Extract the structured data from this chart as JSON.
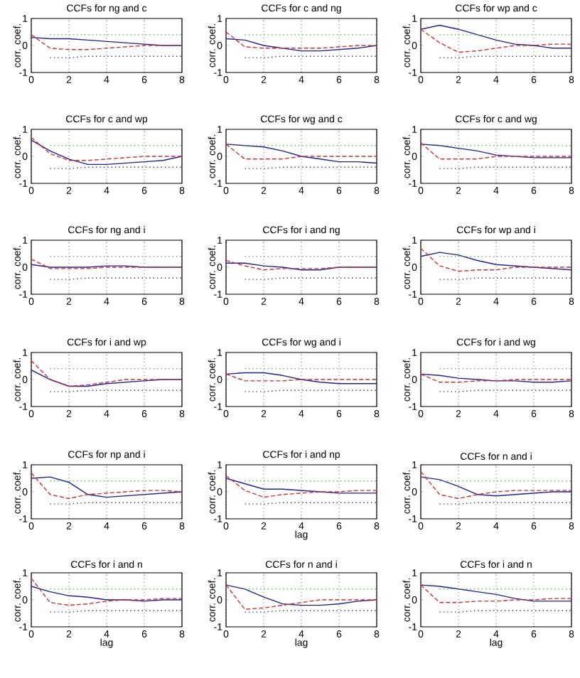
{
  "chart_data": [
    {
      "type": "line",
      "title": "CCFs for ng and c",
      "ylabel": "corr. coef.",
      "xlim": [
        0,
        8
      ],
      "ylim": [
        -1,
        1
      ],
      "xticks": [
        0,
        2,
        4,
        6,
        8
      ],
      "yticks": [
        -1,
        0,
        1
      ],
      "grid": "x",
      "x": [
        0,
        1,
        2,
        3,
        4,
        5,
        6,
        7,
        8
      ],
      "series": [
        {
          "color": "#22228c",
          "line_style": "solid",
          "values": [
            0.3,
            0.25,
            0.25,
            0.2,
            0.15,
            0.1,
            0.05,
            0,
            0
          ]
        },
        {
          "color": "#cc3333",
          "line_style": "dashed",
          "values": [
            0.4,
            -0.1,
            -0.15,
            -0.15,
            -0.1,
            -0.05,
            0,
            0,
            0
          ]
        },
        {
          "color": "#55bb55",
          "line_style": "dotted",
          "x": [
            1,
            2,
            3,
            4,
            5,
            6,
            7,
            8
          ],
          "values": [
            0.4,
            0.4,
            0.4,
            0.4,
            0.4,
            0.4,
            0.4,
            0.4
          ]
        },
        {
          "color": "#333366",
          "line_style": "dotted",
          "x": [
            1,
            2,
            3,
            4,
            5,
            6,
            7,
            8
          ],
          "values": [
            -0.45,
            -0.45,
            -0.4,
            -0.4,
            -0.4,
            -0.4,
            -0.4,
            -0.4
          ]
        }
      ]
    },
    {
      "type": "line",
      "title": "CCFs for c and ng",
      "ylabel": "corr. coef.",
      "xlim": [
        0,
        8
      ],
      "ylim": [
        -1,
        1
      ],
      "xticks": [
        0,
        2,
        4,
        6,
        8
      ],
      "yticks": [
        -1,
        0,
        1
      ],
      "grid": "x",
      "x": [
        0,
        1,
        2,
        3,
        4,
        5,
        6,
        7,
        8
      ],
      "series": [
        {
          "color": "#22228c",
          "line_style": "solid",
          "values": [
            0.25,
            0.2,
            0,
            -0.1,
            -0.2,
            -0.2,
            -0.15,
            -0.1,
            0
          ]
        },
        {
          "color": "#cc3333",
          "line_style": "dashed",
          "values": [
            0.5,
            -0.05,
            -0.1,
            -0.1,
            -0.1,
            -0.1,
            -0.05,
            0,
            0
          ]
        },
        {
          "color": "#55bb55",
          "line_style": "dotted",
          "x": [
            1,
            2,
            3,
            4,
            5,
            6,
            7,
            8
          ],
          "values": [
            0.4,
            0.4,
            0.4,
            0.4,
            0.4,
            0.4,
            0.4,
            0.4
          ]
        },
        {
          "color": "#333366",
          "line_style": "dotted",
          "x": [
            1,
            2,
            3,
            4,
            5,
            6,
            7,
            8
          ],
          "values": [
            -0.45,
            -0.45,
            -0.4,
            -0.4,
            -0.4,
            -0.4,
            -0.4,
            -0.4
          ]
        }
      ]
    },
    {
      "type": "line",
      "title": "CCFs for wp and c",
      "ylabel": "corr. coef.",
      "xlim": [
        0,
        8
      ],
      "ylim": [
        -1,
        1
      ],
      "xticks": [
        0,
        2,
        4,
        6,
        8
      ],
      "yticks": [
        -1,
        0,
        1
      ],
      "grid": "x",
      "x": [
        0,
        1,
        2,
        3,
        4,
        5,
        6,
        7,
        8
      ],
      "series": [
        {
          "color": "#22228c",
          "line_style": "solid",
          "values": [
            0.6,
            0.75,
            0.6,
            0.4,
            0.2,
            0.05,
            0,
            -0.1,
            -0.1
          ]
        },
        {
          "color": "#cc3333",
          "line_style": "dashed",
          "values": [
            0.6,
            0.1,
            -0.25,
            -0.2,
            -0.1,
            0,
            0,
            0.05,
            0.05
          ]
        },
        {
          "color": "#55bb55",
          "line_style": "dotted",
          "x": [
            1,
            2,
            3,
            4,
            5,
            6,
            7,
            8
          ],
          "values": [
            0.4,
            0.4,
            0.4,
            0.4,
            0.4,
            0.4,
            0.4,
            0.4
          ]
        },
        {
          "color": "#333366",
          "line_style": "dotted",
          "x": [
            1,
            2,
            3,
            4,
            5,
            6,
            7,
            8
          ],
          "values": [
            -0.45,
            -0.45,
            -0.4,
            -0.4,
            -0.4,
            -0.4,
            -0.4,
            -0.4
          ]
        }
      ]
    },
    {
      "type": "line",
      "title": "CCFs for c and wp",
      "ylabel": "corr. coef.",
      "xlim": [
        0,
        8
      ],
      "ylim": [
        -1,
        1
      ],
      "xticks": [
        0,
        2,
        4,
        6,
        8
      ],
      "yticks": [
        -1,
        0,
        1
      ],
      "grid": "x",
      "x": [
        0,
        1,
        2,
        3,
        4,
        5,
        6,
        7,
        8
      ],
      "series": [
        {
          "color": "#22228c",
          "line_style": "solid",
          "values": [
            0.6,
            0.2,
            -0.1,
            -0.3,
            -0.3,
            -0.25,
            -0.2,
            -0.15,
            0
          ]
        },
        {
          "color": "#cc3333",
          "line_style": "dashed",
          "values": [
            0.7,
            0.1,
            -0.15,
            -0.15,
            -0.1,
            -0.05,
            0,
            0,
            0
          ]
        },
        {
          "color": "#55bb55",
          "line_style": "dotted",
          "x": [
            1,
            2,
            3,
            4,
            5,
            6,
            7,
            8
          ],
          "values": [
            0.4,
            0.4,
            0.4,
            0.4,
            0.4,
            0.4,
            0.4,
            0.4
          ]
        },
        {
          "color": "#333366",
          "line_style": "dotted",
          "x": [
            1,
            2,
            3,
            4,
            5,
            6,
            7,
            8
          ],
          "values": [
            -0.45,
            -0.45,
            -0.4,
            -0.4,
            -0.4,
            -0.4,
            -0.4,
            -0.4
          ]
        }
      ]
    },
    {
      "type": "line",
      "title": "CCFs for wg and c",
      "ylabel": "corr. coef.",
      "xlim": [
        0,
        8
      ],
      "ylim": [
        -1,
        1
      ],
      "xticks": [
        0,
        2,
        4,
        6,
        8
      ],
      "yticks": [
        -1,
        0,
        1
      ],
      "grid": "x",
      "x": [
        0,
        1,
        2,
        3,
        4,
        5,
        6,
        7,
        8
      ],
      "series": [
        {
          "color": "#22228c",
          "line_style": "solid",
          "values": [
            0.45,
            0.4,
            0.35,
            0.2,
            0,
            -0.1,
            -0.2,
            -0.2,
            -0.25
          ]
        },
        {
          "color": "#cc3333",
          "line_style": "dashed",
          "values": [
            0.45,
            -0.1,
            -0.1,
            -0.1,
            0,
            0,
            0,
            0,
            0
          ]
        },
        {
          "color": "#55bb55",
          "line_style": "dotted",
          "x": [
            1,
            2,
            3,
            4,
            5,
            6,
            7,
            8
          ],
          "values": [
            0.4,
            0.4,
            0.4,
            0.4,
            0.4,
            0.4,
            0.4,
            0.4
          ]
        },
        {
          "color": "#333366",
          "line_style": "dotted",
          "x": [
            1,
            2,
            3,
            4,
            5,
            6,
            7,
            8
          ],
          "values": [
            -0.45,
            -0.45,
            -0.4,
            -0.4,
            -0.4,
            -0.4,
            -0.4,
            -0.4
          ]
        }
      ]
    },
    {
      "type": "line",
      "title": "CCFs for c and wg",
      "ylabel": "corr. coef.",
      "xlim": [
        0,
        8
      ],
      "ylim": [
        -1,
        1
      ],
      "xticks": [
        0,
        2,
        4,
        6,
        8
      ],
      "yticks": [
        -1,
        0,
        1
      ],
      "grid": "x",
      "x": [
        0,
        1,
        2,
        3,
        4,
        5,
        6,
        7,
        8
      ],
      "series": [
        {
          "color": "#22228c",
          "line_style": "solid",
          "values": [
            0.45,
            0.4,
            0.3,
            0.2,
            0.05,
            0,
            -0.05,
            -0.05,
            -0.05
          ]
        },
        {
          "color": "#cc3333",
          "line_style": "dashed",
          "values": [
            0.5,
            -0.1,
            -0.1,
            -0.1,
            0,
            0,
            0,
            0,
            0
          ]
        },
        {
          "color": "#55bb55",
          "line_style": "dotted",
          "x": [
            1,
            2,
            3,
            4,
            5,
            6,
            7,
            8
          ],
          "values": [
            0.4,
            0.4,
            0.4,
            0.4,
            0.4,
            0.4,
            0.4,
            0.4
          ]
        },
        {
          "color": "#333366",
          "line_style": "dotted",
          "x": [
            1,
            2,
            3,
            4,
            5,
            6,
            7,
            8
          ],
          "values": [
            -0.45,
            -0.45,
            -0.4,
            -0.4,
            -0.4,
            -0.4,
            -0.4,
            -0.4
          ]
        }
      ]
    },
    {
      "type": "line",
      "title": "CCFs for ng and i",
      "ylabel": "corr. coef.",
      "xlim": [
        0,
        8
      ],
      "ylim": [
        -1,
        1
      ],
      "xticks": [
        0,
        2,
        4,
        6,
        8
      ],
      "yticks": [
        -1,
        0,
        1
      ],
      "grid": "x",
      "x": [
        0,
        1,
        2,
        3,
        4,
        5,
        6,
        7,
        8
      ],
      "series": [
        {
          "color": "#22228c",
          "line_style": "solid",
          "values": [
            0.1,
            0,
            0,
            0,
            0.05,
            0.05,
            0,
            0,
            0
          ]
        },
        {
          "color": "#cc3333",
          "line_style": "dashed",
          "values": [
            0.3,
            -0.05,
            -0.05,
            -0.05,
            0,
            0,
            0,
            0,
            0
          ]
        },
        {
          "color": "#55bb55",
          "line_style": "dotted",
          "x": [
            1,
            2,
            3,
            4,
            5,
            6,
            7,
            8
          ],
          "values": [
            0.4,
            0.4,
            0.4,
            0.4,
            0.4,
            0.4,
            0.4,
            0.4
          ]
        },
        {
          "color": "#333366",
          "line_style": "dotted",
          "x": [
            1,
            2,
            3,
            4,
            5,
            6,
            7,
            8
          ],
          "values": [
            -0.45,
            -0.45,
            -0.4,
            -0.4,
            -0.4,
            -0.4,
            -0.4,
            -0.4
          ]
        }
      ]
    },
    {
      "type": "line",
      "title": "CCFs for i and ng",
      "ylabel": "corr. coef.",
      "xlim": [
        0,
        8
      ],
      "ylim": [
        -1,
        1
      ],
      "xticks": [
        0,
        2,
        4,
        6,
        8
      ],
      "yticks": [
        -1,
        0,
        1
      ],
      "grid": "x",
      "x": [
        0,
        1,
        2,
        3,
        4,
        5,
        6,
        7,
        8
      ],
      "series": [
        {
          "color": "#22228c",
          "line_style": "solid",
          "values": [
            0.15,
            0.15,
            0.05,
            0,
            -0.1,
            -0.1,
            0,
            0,
            0
          ]
        },
        {
          "color": "#cc3333",
          "line_style": "dashed",
          "values": [
            0.25,
            0.05,
            -0.1,
            -0.05,
            -0.05,
            -0.05,
            0,
            0,
            0
          ]
        },
        {
          "color": "#55bb55",
          "line_style": "dotted",
          "x": [
            1,
            2,
            3,
            4,
            5,
            6,
            7,
            8
          ],
          "values": [
            0.4,
            0.4,
            0.4,
            0.4,
            0.4,
            0.4,
            0.4,
            0.4
          ]
        },
        {
          "color": "#333366",
          "line_style": "dotted",
          "x": [
            1,
            2,
            3,
            4,
            5,
            6,
            7,
            8
          ],
          "values": [
            -0.45,
            -0.45,
            -0.4,
            -0.4,
            -0.4,
            -0.4,
            -0.4,
            -0.4
          ]
        }
      ]
    },
    {
      "type": "line",
      "title": "CCFs for wp and i",
      "ylabel": "corr. coef.",
      "xlim": [
        0,
        8
      ],
      "ylim": [
        -1,
        1
      ],
      "xticks": [
        0,
        2,
        4,
        6,
        8
      ],
      "yticks": [
        -1,
        0,
        1
      ],
      "grid": "x",
      "x": [
        0,
        1,
        2,
        3,
        4,
        5,
        6,
        7,
        8
      ],
      "series": [
        {
          "color": "#22228c",
          "line_style": "solid",
          "values": [
            0.4,
            0.55,
            0.45,
            0.25,
            0.1,
            0.05,
            0,
            -0.05,
            -0.1
          ]
        },
        {
          "color": "#cc3333",
          "line_style": "dashed",
          "values": [
            0.7,
            0.05,
            -0.15,
            -0.1,
            -0.1,
            0,
            0,
            0,
            0
          ]
        },
        {
          "color": "#55bb55",
          "line_style": "dotted",
          "x": [
            1,
            2,
            3,
            4,
            5,
            6,
            7,
            8
          ],
          "values": [
            0.4,
            0.4,
            0.4,
            0.4,
            0.4,
            0.4,
            0.4,
            0.4
          ]
        },
        {
          "color": "#333366",
          "line_style": "dotted",
          "x": [
            1,
            2,
            3,
            4,
            5,
            6,
            7,
            8
          ],
          "values": [
            -0.45,
            -0.45,
            -0.4,
            -0.4,
            -0.4,
            -0.4,
            -0.4,
            -0.4
          ]
        }
      ]
    },
    {
      "type": "line",
      "title": "CCFs for i and wp",
      "ylabel": "corr. coef.",
      "xlim": [
        0,
        8
      ],
      "ylim": [
        -1,
        1
      ],
      "xticks": [
        0,
        2,
        4,
        6,
        8
      ],
      "yticks": [
        -1,
        0,
        1
      ],
      "grid": "x",
      "x": [
        0,
        1,
        2,
        3,
        4,
        5,
        6,
        7,
        8
      ],
      "series": [
        {
          "color": "#22228c",
          "line_style": "solid",
          "values": [
            0.35,
            0,
            -0.25,
            -0.25,
            -0.15,
            -0.1,
            -0.05,
            0,
            0
          ]
        },
        {
          "color": "#cc3333",
          "line_style": "dashed",
          "values": [
            0.7,
            0,
            -0.25,
            -0.2,
            -0.1,
            0,
            0,
            0,
            0
          ]
        },
        {
          "color": "#55bb55",
          "line_style": "dotted",
          "x": [
            1,
            2,
            3,
            4,
            5,
            6,
            7,
            8
          ],
          "values": [
            0.4,
            0.4,
            0.4,
            0.4,
            0.4,
            0.4,
            0.4,
            0.4
          ]
        },
        {
          "color": "#333366",
          "line_style": "dotted",
          "x": [
            1,
            2,
            3,
            4,
            5,
            6,
            7,
            8
          ],
          "values": [
            -0.45,
            -0.45,
            -0.4,
            -0.4,
            -0.4,
            -0.4,
            -0.4,
            -0.4
          ]
        }
      ]
    },
    {
      "type": "line",
      "title": "CCFs for wg and i",
      "ylabel": "corr. coef.",
      "xlim": [
        0,
        8
      ],
      "ylim": [
        -1,
        1
      ],
      "xticks": [
        0,
        2,
        4,
        6,
        8
      ],
      "yticks": [
        -1,
        0,
        1
      ],
      "grid": "x",
      "x": [
        0,
        1,
        2,
        3,
        4,
        5,
        6,
        7,
        8
      ],
      "series": [
        {
          "color": "#22228c",
          "line_style": "solid",
          "values": [
            0.2,
            0.25,
            0.25,
            0.15,
            0,
            -0.1,
            -0.15,
            -0.15,
            -0.15
          ]
        },
        {
          "color": "#cc3333",
          "line_style": "dashed",
          "values": [
            0.2,
            -0.05,
            -0.05,
            -0.05,
            0,
            0,
            0,
            0,
            0
          ]
        },
        {
          "color": "#55bb55",
          "line_style": "dotted",
          "x": [
            1,
            2,
            3,
            4,
            5,
            6,
            7,
            8
          ],
          "values": [
            0.4,
            0.4,
            0.4,
            0.4,
            0.4,
            0.4,
            0.4,
            0.4
          ]
        },
        {
          "color": "#333366",
          "line_style": "dotted",
          "x": [
            1,
            2,
            3,
            4,
            5,
            6,
            7,
            8
          ],
          "values": [
            -0.45,
            -0.45,
            -0.4,
            -0.4,
            -0.4,
            -0.4,
            -0.4,
            -0.4
          ]
        }
      ]
    },
    {
      "type": "line",
      "title": "CCFs for i and wg",
      "ylabel": "corr. coef.",
      "xlim": [
        0,
        8
      ],
      "ylim": [
        -1,
        1
      ],
      "xticks": [
        0,
        2,
        4,
        6,
        8
      ],
      "yticks": [
        -1,
        0,
        1
      ],
      "grid": "x",
      "x": [
        0,
        1,
        2,
        3,
        4,
        5,
        6,
        7,
        8
      ],
      "series": [
        {
          "color": "#22228c",
          "line_style": "solid",
          "values": [
            0.2,
            0.15,
            0.05,
            0,
            -0.05,
            -0.05,
            -0.1,
            -0.1,
            -0.05
          ]
        },
        {
          "color": "#cc3333",
          "line_style": "dashed",
          "values": [
            0.2,
            -0.1,
            -0.1,
            -0.05,
            -0.05,
            0,
            0,
            0,
            0
          ]
        },
        {
          "color": "#55bb55",
          "line_style": "dotted",
          "x": [
            1,
            2,
            3,
            4,
            5,
            6,
            7,
            8
          ],
          "values": [
            0.4,
            0.4,
            0.4,
            0.4,
            0.4,
            0.4,
            0.4,
            0.4
          ]
        },
        {
          "color": "#333366",
          "line_style": "dotted",
          "x": [
            1,
            2,
            3,
            4,
            5,
            6,
            7,
            8
          ],
          "values": [
            -0.45,
            -0.45,
            -0.4,
            -0.4,
            -0.4,
            -0.4,
            -0.4,
            -0.4
          ]
        }
      ]
    },
    {
      "type": "line",
      "title": "CCFs for np and i",
      "ylabel": "corr. coef.",
      "xlim": [
        0,
        8
      ],
      "ylim": [
        -1,
        1
      ],
      "xticks": [
        0,
        2,
        4,
        6,
        8
      ],
      "yticks": [
        -1,
        0,
        1
      ],
      "grid": "x",
      "x": [
        0,
        1,
        2,
        3,
        4,
        5,
        6,
        7,
        8
      ],
      "series": [
        {
          "color": "#22228c",
          "line_style": "solid",
          "values": [
            0.5,
            0.55,
            0.35,
            -0.1,
            -0.2,
            -0.15,
            -0.1,
            -0.05,
            0
          ]
        },
        {
          "color": "#cc3333",
          "line_style": "dashed",
          "values": [
            0.7,
            -0.1,
            -0.25,
            -0.1,
            -0.05,
            0,
            0.05,
            0.05,
            0
          ]
        },
        {
          "color": "#55bb55",
          "line_style": "dotted",
          "x": [
            1,
            2,
            3,
            4,
            5,
            6,
            7,
            8
          ],
          "values": [
            0.4,
            0.4,
            0.4,
            0.4,
            0.4,
            0.4,
            0.4,
            0.4
          ]
        },
        {
          "color": "#333366",
          "line_style": "dotted",
          "x": [
            1,
            2,
            3,
            4,
            5,
            6,
            7,
            8
          ],
          "values": [
            -0.45,
            -0.45,
            -0.4,
            -0.4,
            -0.4,
            -0.4,
            -0.4,
            -0.4
          ]
        }
      ]
    },
    {
      "type": "line",
      "title": "CCFs for i and np",
      "xlabel": "lag",
      "ylabel": "corr. coef.",
      "xlim": [
        0,
        8
      ],
      "ylim": [
        -1,
        1
      ],
      "xticks": [
        0,
        2,
        4,
        6,
        8
      ],
      "yticks": [
        -1,
        0,
        1
      ],
      "grid": "x",
      "x": [
        0,
        1,
        2,
        3,
        4,
        5,
        6,
        7,
        8
      ],
      "series": [
        {
          "color": "#22228c",
          "line_style": "solid",
          "values": [
            0.5,
            0.3,
            0.1,
            0.1,
            0.05,
            0,
            -0.05,
            -0.05,
            -0.05
          ]
        },
        {
          "color": "#cc3333",
          "line_style": "dashed",
          "values": [
            0.6,
            0.05,
            -0.2,
            -0.1,
            -0.05,
            0,
            0,
            0.05,
            0.05
          ]
        },
        {
          "color": "#55bb55",
          "line_style": "dotted",
          "x": [
            1,
            2,
            3,
            4,
            5,
            6,
            7,
            8
          ],
          "values": [
            0.4,
            0.4,
            0.4,
            0.4,
            0.4,
            0.4,
            0.4,
            0.4
          ]
        },
        {
          "color": "#333366",
          "line_style": "dotted",
          "x": [
            1,
            2,
            3,
            4,
            5,
            6,
            7,
            8
          ],
          "values": [
            -0.45,
            -0.45,
            -0.4,
            -0.4,
            -0.4,
            -0.4,
            -0.4,
            -0.4
          ]
        }
      ]
    },
    {
      "type": "line",
      "title": "CCFs for n and i",
      "ylabel": "corr. coef.",
      "xlim": [
        0,
        8
      ],
      "ylim": [
        -1,
        1
      ],
      "xticks": [
        0,
        2,
        4,
        6,
        8
      ],
      "yticks": [
        -1,
        0,
        1
      ],
      "grid": "x",
      "x": [
        0,
        1,
        2,
        3,
        4,
        5,
        6,
        7,
        8
      ],
      "series": [
        {
          "color": "#22228c",
          "line_style": "solid",
          "values": [
            0.55,
            0.45,
            0.2,
            -0.1,
            -0.15,
            -0.1,
            -0.05,
            0,
            0
          ]
        },
        {
          "color": "#cc3333",
          "line_style": "dashed",
          "values": [
            0.75,
            -0.1,
            -0.25,
            -0.1,
            0,
            0.05,
            0.05,
            0.05,
            0.05
          ]
        },
        {
          "color": "#55bb55",
          "line_style": "dotted",
          "x": [
            1,
            2,
            3,
            4,
            5,
            6,
            7,
            8
          ],
          "values": [
            0.4,
            0.4,
            0.4,
            0.4,
            0.4,
            0.4,
            0.4,
            0.4
          ]
        },
        {
          "color": "#333366",
          "line_style": "dotted",
          "x": [
            1,
            2,
            3,
            4,
            5,
            6,
            7,
            8
          ],
          "values": [
            -0.45,
            -0.45,
            -0.4,
            -0.4,
            -0.4,
            -0.4,
            -0.4,
            -0.4
          ]
        }
      ]
    },
    {
      "type": "line",
      "title": "CCFs for i and n",
      "xlabel": "lag",
      "ylabel": "corr. coef.",
      "xlim": [
        0,
        8
      ],
      "ylim": [
        -1,
        1
      ],
      "xticks": [
        0,
        2,
        4,
        6,
        8
      ],
      "yticks": [
        -1,
        0,
        1
      ],
      "grid": "x",
      "x": [
        0,
        1,
        2,
        3,
        4,
        5,
        6,
        7,
        8
      ],
      "series": [
        {
          "color": "#22228c",
          "line_style": "solid",
          "values": [
            0.5,
            0.3,
            0.15,
            0.1,
            0,
            0,
            -0.05,
            0,
            0
          ]
        },
        {
          "color": "#cc3333",
          "line_style": "dashed",
          "values": [
            0.8,
            -0.1,
            -0.2,
            -0.15,
            -0.05,
            0,
            0,
            0.05,
            0.05
          ]
        },
        {
          "color": "#55bb55",
          "line_style": "dotted",
          "x": [
            1,
            2,
            3,
            4,
            5,
            6,
            7,
            8
          ],
          "values": [
            0.4,
            0.4,
            0.4,
            0.4,
            0.4,
            0.4,
            0.4,
            0.4
          ]
        },
        {
          "color": "#333366",
          "line_style": "dotted",
          "x": [
            1,
            2,
            3,
            4,
            5,
            6,
            7,
            8
          ],
          "values": [
            -0.45,
            -0.45,
            -0.4,
            -0.4,
            -0.4,
            -0.4,
            -0.4,
            -0.4
          ]
        }
      ]
    },
    {
      "type": "line",
      "title": "CCFs for n and i",
      "xlabel": "lag",
      "ylabel": "corr. coef.",
      "xlim": [
        0,
        8
      ],
      "ylim": [
        -1,
        1
      ],
      "xticks": [
        0,
        2,
        4,
        6,
        8
      ],
      "yticks": [
        -1,
        0,
        1
      ],
      "grid": "x",
      "x": [
        0,
        1,
        2,
        3,
        4,
        5,
        6,
        7,
        8
      ],
      "series": [
        {
          "color": "#22228c",
          "line_style": "solid",
          "values": [
            0.55,
            0.4,
            0.1,
            -0.15,
            -0.2,
            -0.2,
            -0.15,
            -0.05,
            0
          ]
        },
        {
          "color": "#cc3333",
          "line_style": "dashed",
          "values": [
            0.55,
            -0.35,
            -0.3,
            -0.2,
            -0.1,
            0,
            0,
            0,
            0
          ]
        },
        {
          "color": "#55bb55",
          "line_style": "dotted",
          "x": [
            1,
            2,
            3,
            4,
            5,
            6,
            7,
            8
          ],
          "values": [
            0.4,
            0.4,
            0.4,
            0.4,
            0.4,
            0.4,
            0.4,
            0.4
          ]
        },
        {
          "color": "#333366",
          "line_style": "dotted",
          "x": [
            1,
            2,
            3,
            4,
            5,
            6,
            7,
            8
          ],
          "values": [
            -0.45,
            -0.45,
            -0.4,
            -0.4,
            -0.4,
            -0.4,
            -0.4,
            -0.4
          ]
        }
      ]
    },
    {
      "type": "line",
      "title": "CCFs for i and n",
      "xlabel": "lag",
      "ylabel": "corr. coef.",
      "xlim": [
        0,
        8
      ],
      "ylim": [
        -1,
        1
      ],
      "xticks": [
        0,
        2,
        4,
        6,
        8
      ],
      "yticks": [
        -1,
        0,
        1
      ],
      "grid": "x",
      "x": [
        0,
        1,
        2,
        3,
        4,
        5,
        6,
        7,
        8
      ],
      "series": [
        {
          "color": "#22228c",
          "line_style": "solid",
          "values": [
            0.55,
            0.5,
            0.4,
            0.3,
            0.2,
            0.05,
            -0.05,
            -0.05,
            -0.05
          ]
        },
        {
          "color": "#cc3333",
          "line_style": "dashed",
          "values": [
            0.55,
            -0.1,
            -0.1,
            -0.05,
            -0.05,
            0,
            0,
            0.05,
            0.05
          ]
        },
        {
          "color": "#55bb55",
          "line_style": "dotted",
          "x": [
            1,
            2,
            3,
            4,
            5,
            6,
            7,
            8
          ],
          "values": [
            0.4,
            0.4,
            0.4,
            0.4,
            0.4,
            0.4,
            0.4,
            0.4
          ]
        },
        {
          "color": "#333366",
          "line_style": "dotted",
          "x": [
            1,
            2,
            3,
            4,
            5,
            6,
            7,
            8
          ],
          "values": [
            -0.45,
            -0.45,
            -0.4,
            -0.4,
            -0.4,
            -0.4,
            -0.4,
            -0.4
          ]
        }
      ]
    }
  ]
}
